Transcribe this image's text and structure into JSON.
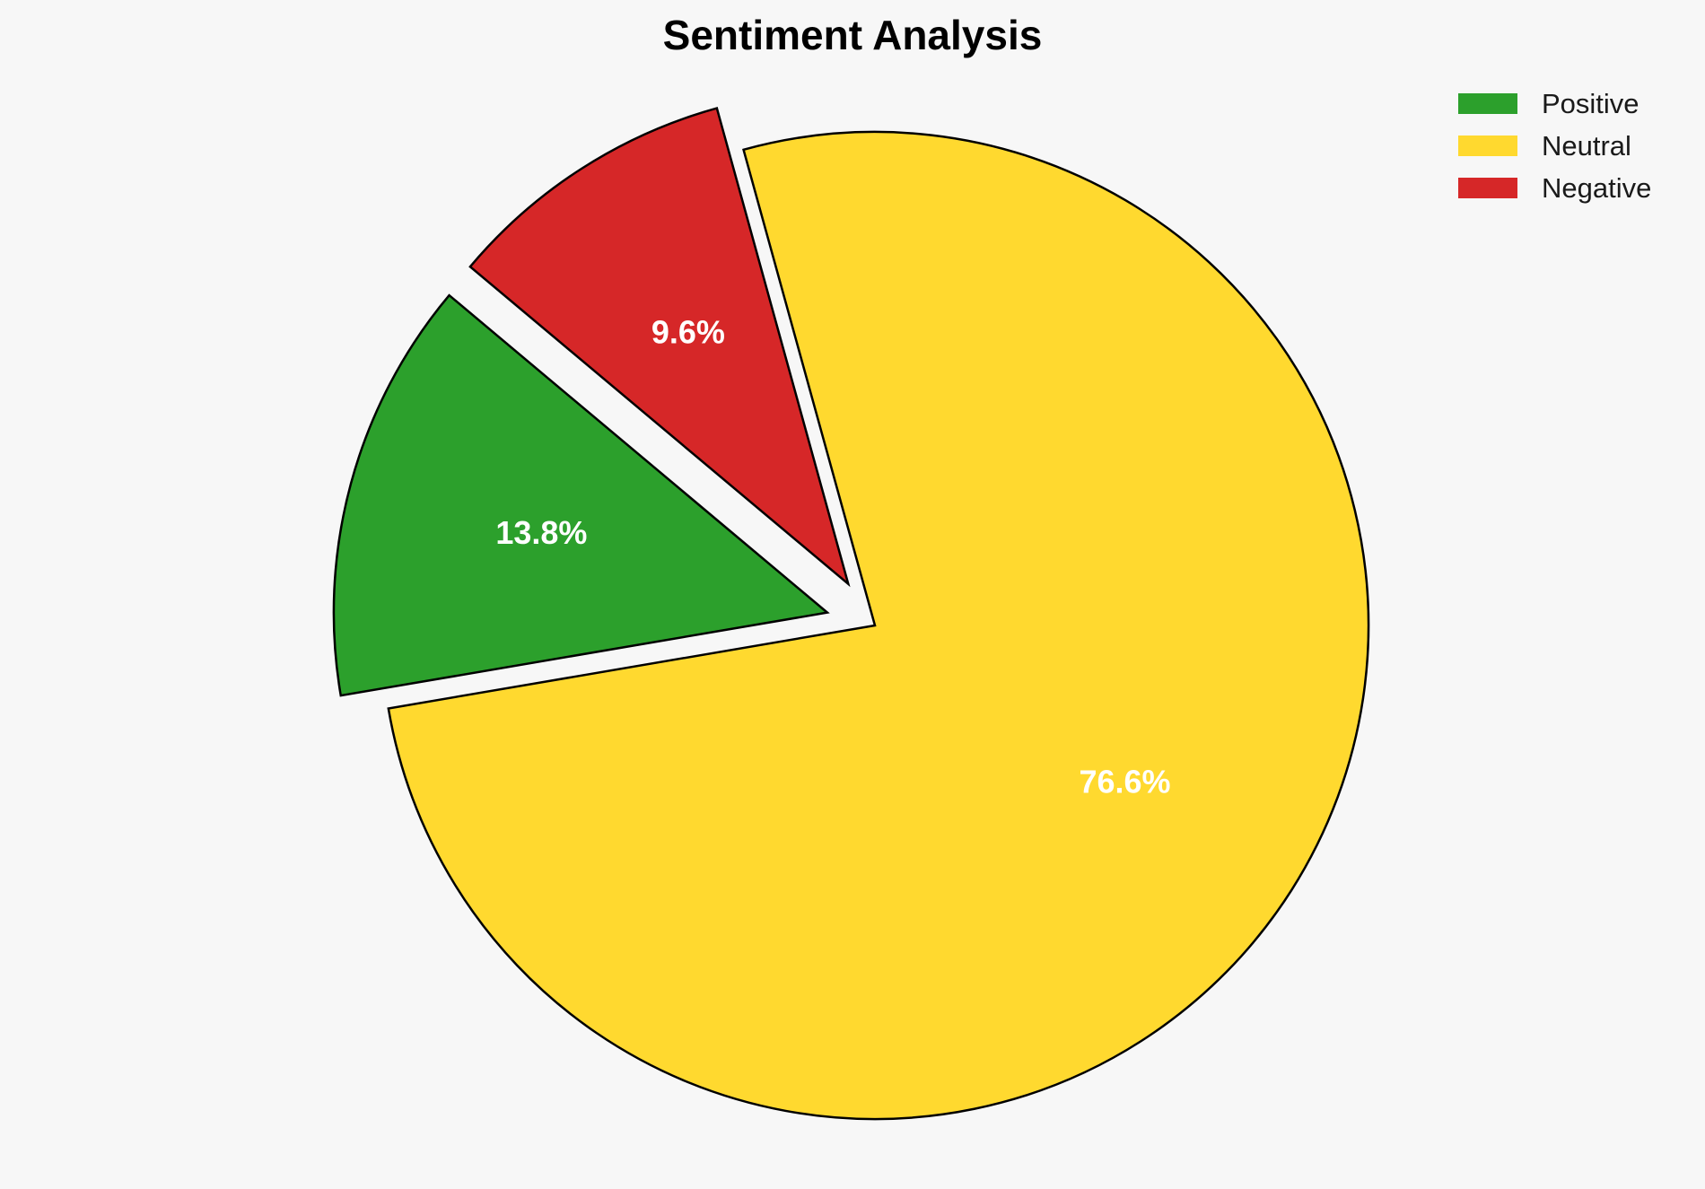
{
  "chart_data": {
    "type": "pie",
    "title": "Sentiment Analysis",
    "slices": [
      {
        "name": "Positive",
        "value": 13.8,
        "label": "13.8%",
        "color": "#2ca02c",
        "exploded": true
      },
      {
        "name": "Neutral",
        "value": 76.6,
        "label": "76.6%",
        "color": "#ffd92f",
        "exploded": false
      },
      {
        "name": "Negative",
        "value": 9.6,
        "label": "9.6%",
        "color": "#d62728",
        "exploded": true
      }
    ],
    "start_angle_deg": 140,
    "direction": "counterclockwise",
    "legend": {
      "placement": "top-right",
      "entries": [
        "Positive",
        "Neutral",
        "Negative"
      ]
    }
  }
}
